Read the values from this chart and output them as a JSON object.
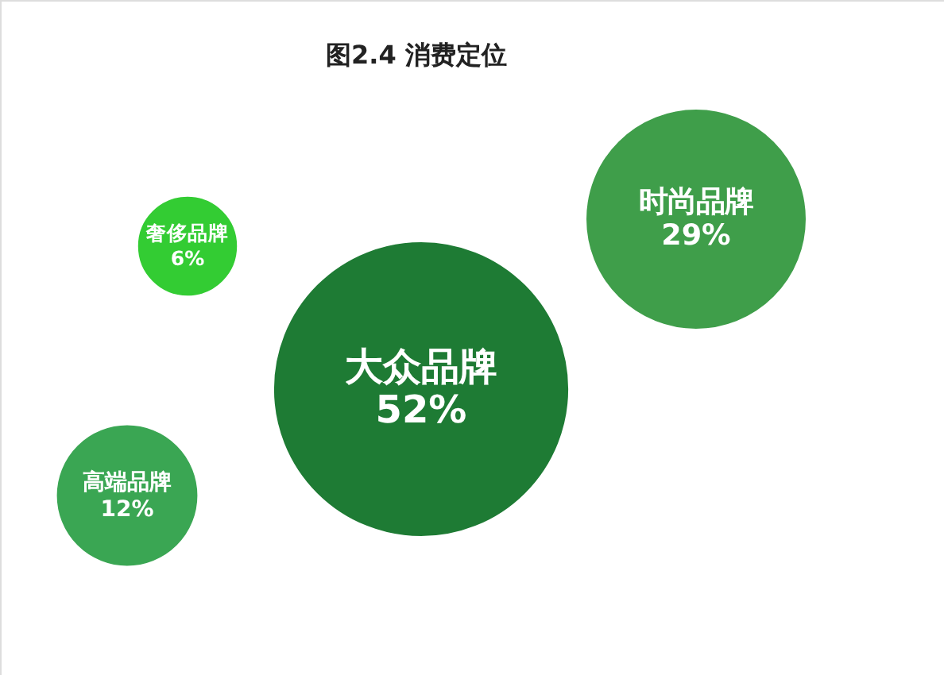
{
  "chart_data": {
    "type": "other",
    "title": "图2.4 消费定位",
    "categories": [
      "大众品牌",
      "时尚品牌",
      "高端品牌",
      "奢侈品牌"
    ],
    "values": [
      52,
      29,
      12,
      6
    ],
    "value_labels": [
      "52%",
      "29%",
      "12%",
      "6%"
    ],
    "colors": [
      "#1e7b34",
      "#3f9e4a",
      "#3aa653",
      "#33cc33"
    ]
  }
}
